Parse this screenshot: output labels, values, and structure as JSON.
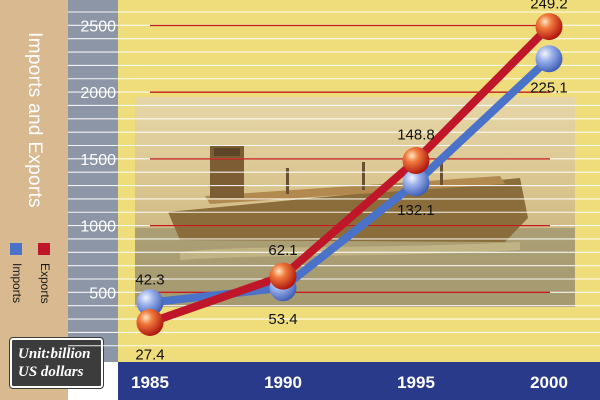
{
  "chart_data": {
    "type": "line",
    "ylabel": "Imports and Exports",
    "unit_note": [
      "Unit:billion",
      "US dollars"
    ],
    "categories": [
      "1985",
      "1990",
      "1995",
      "2000"
    ],
    "yticks": [
      500,
      1000,
      1500,
      2000,
      2500
    ],
    "ylim": [
      0,
      2700
    ],
    "grid": true,
    "legend_position": "left",
    "series": [
      {
        "name": "Exports",
        "color": "#c0162a",
        "values": [
          274,
          621,
          1488,
          2492
        ],
        "labels": [
          "27.4",
          "62.1",
          "148.8",
          "249.2"
        ]
      },
      {
        "name": "Imports",
        "color": "#4a72c8",
        "values": [
          423,
          534,
          1321,
          2251
        ],
        "labels": [
          "42.3",
          "53.4",
          "132.1",
          "225.1"
        ]
      }
    ]
  }
}
